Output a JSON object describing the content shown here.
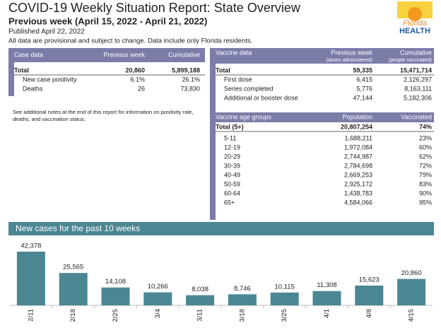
{
  "header": {
    "title": "COVID-19 Weekly Situation Report: State Overview",
    "subtitle": "Previous week (April 15, 2022 - April 21, 2022)",
    "published": "Published April 22, 2022",
    "disclaimer": "All data are provisional and subject to change. Data include only Florida residents."
  },
  "logo": {
    "line1": "Florida",
    "line2": "HEALTH"
  },
  "case_table": {
    "columns": [
      "Case data",
      "Previous week",
      "Cumulative"
    ],
    "rows": [
      [
        "Total",
        "20,860",
        "5,899,188"
      ],
      [
        "New case positivity",
        "6.1%",
        "26.1%"
      ],
      [
        "Deaths",
        "26",
        "73,830"
      ]
    ]
  },
  "note": "See additional notes at the end of this report for information on positivity rate, deaths, and vaccination status.",
  "vaccine_table": {
    "columns": [
      "Vaccine data",
      "Previous week",
      "Cumulative"
    ],
    "subcolumns": [
      "(doses administered)",
      "(people vaccinated)"
    ],
    "rows": [
      [
        "Total",
        "59,335",
        "15,471,714"
      ],
      [
        "First dose",
        "6,415",
        "2,126,297"
      ],
      [
        "Series completed",
        "5,776",
        "8,163,111"
      ],
      [
        "Additional or booster dose",
        "47,144",
        "5,182,306"
      ]
    ]
  },
  "age_table": {
    "columns": [
      "Vaccine age groups",
      "Population",
      "Vaccinated"
    ],
    "rows": [
      [
        "Total (5+)",
        "20,807,254",
        "74%"
      ],
      [
        "5-11",
        "1,688,211",
        "23%"
      ],
      [
        "12-19",
        "1,972,084",
        "60%"
      ],
      [
        "20-29",
        "2,744,987",
        "62%"
      ],
      [
        "30-39",
        "2,784,698",
        "72%"
      ],
      [
        "40-49",
        "2,669,253",
        "79%"
      ],
      [
        "50-59",
        "2,925,172",
        "83%"
      ],
      [
        "60-64",
        "1,438,783",
        "90%"
      ],
      [
        "65+",
        "4,584,066",
        "95%"
      ]
    ]
  },
  "chart_data": {
    "type": "bar",
    "title": "New cases for the past 10 weeks",
    "categories": [
      "2/11",
      "2/18",
      "2/25",
      "3/4",
      "3/11",
      "3/18",
      "3/25",
      "4/1",
      "4/8",
      "4/15"
    ],
    "values": [
      42378,
      25565,
      14108,
      10266,
      8038,
      8746,
      10115,
      11308,
      15623,
      20860
    ],
    "value_labels": [
      "42,378",
      "25,565",
      "14,108",
      "10,266",
      "8,038",
      "8,746",
      "10,115",
      "11,308",
      "15,623",
      "20,860"
    ],
    "color": "#4b8693"
  }
}
